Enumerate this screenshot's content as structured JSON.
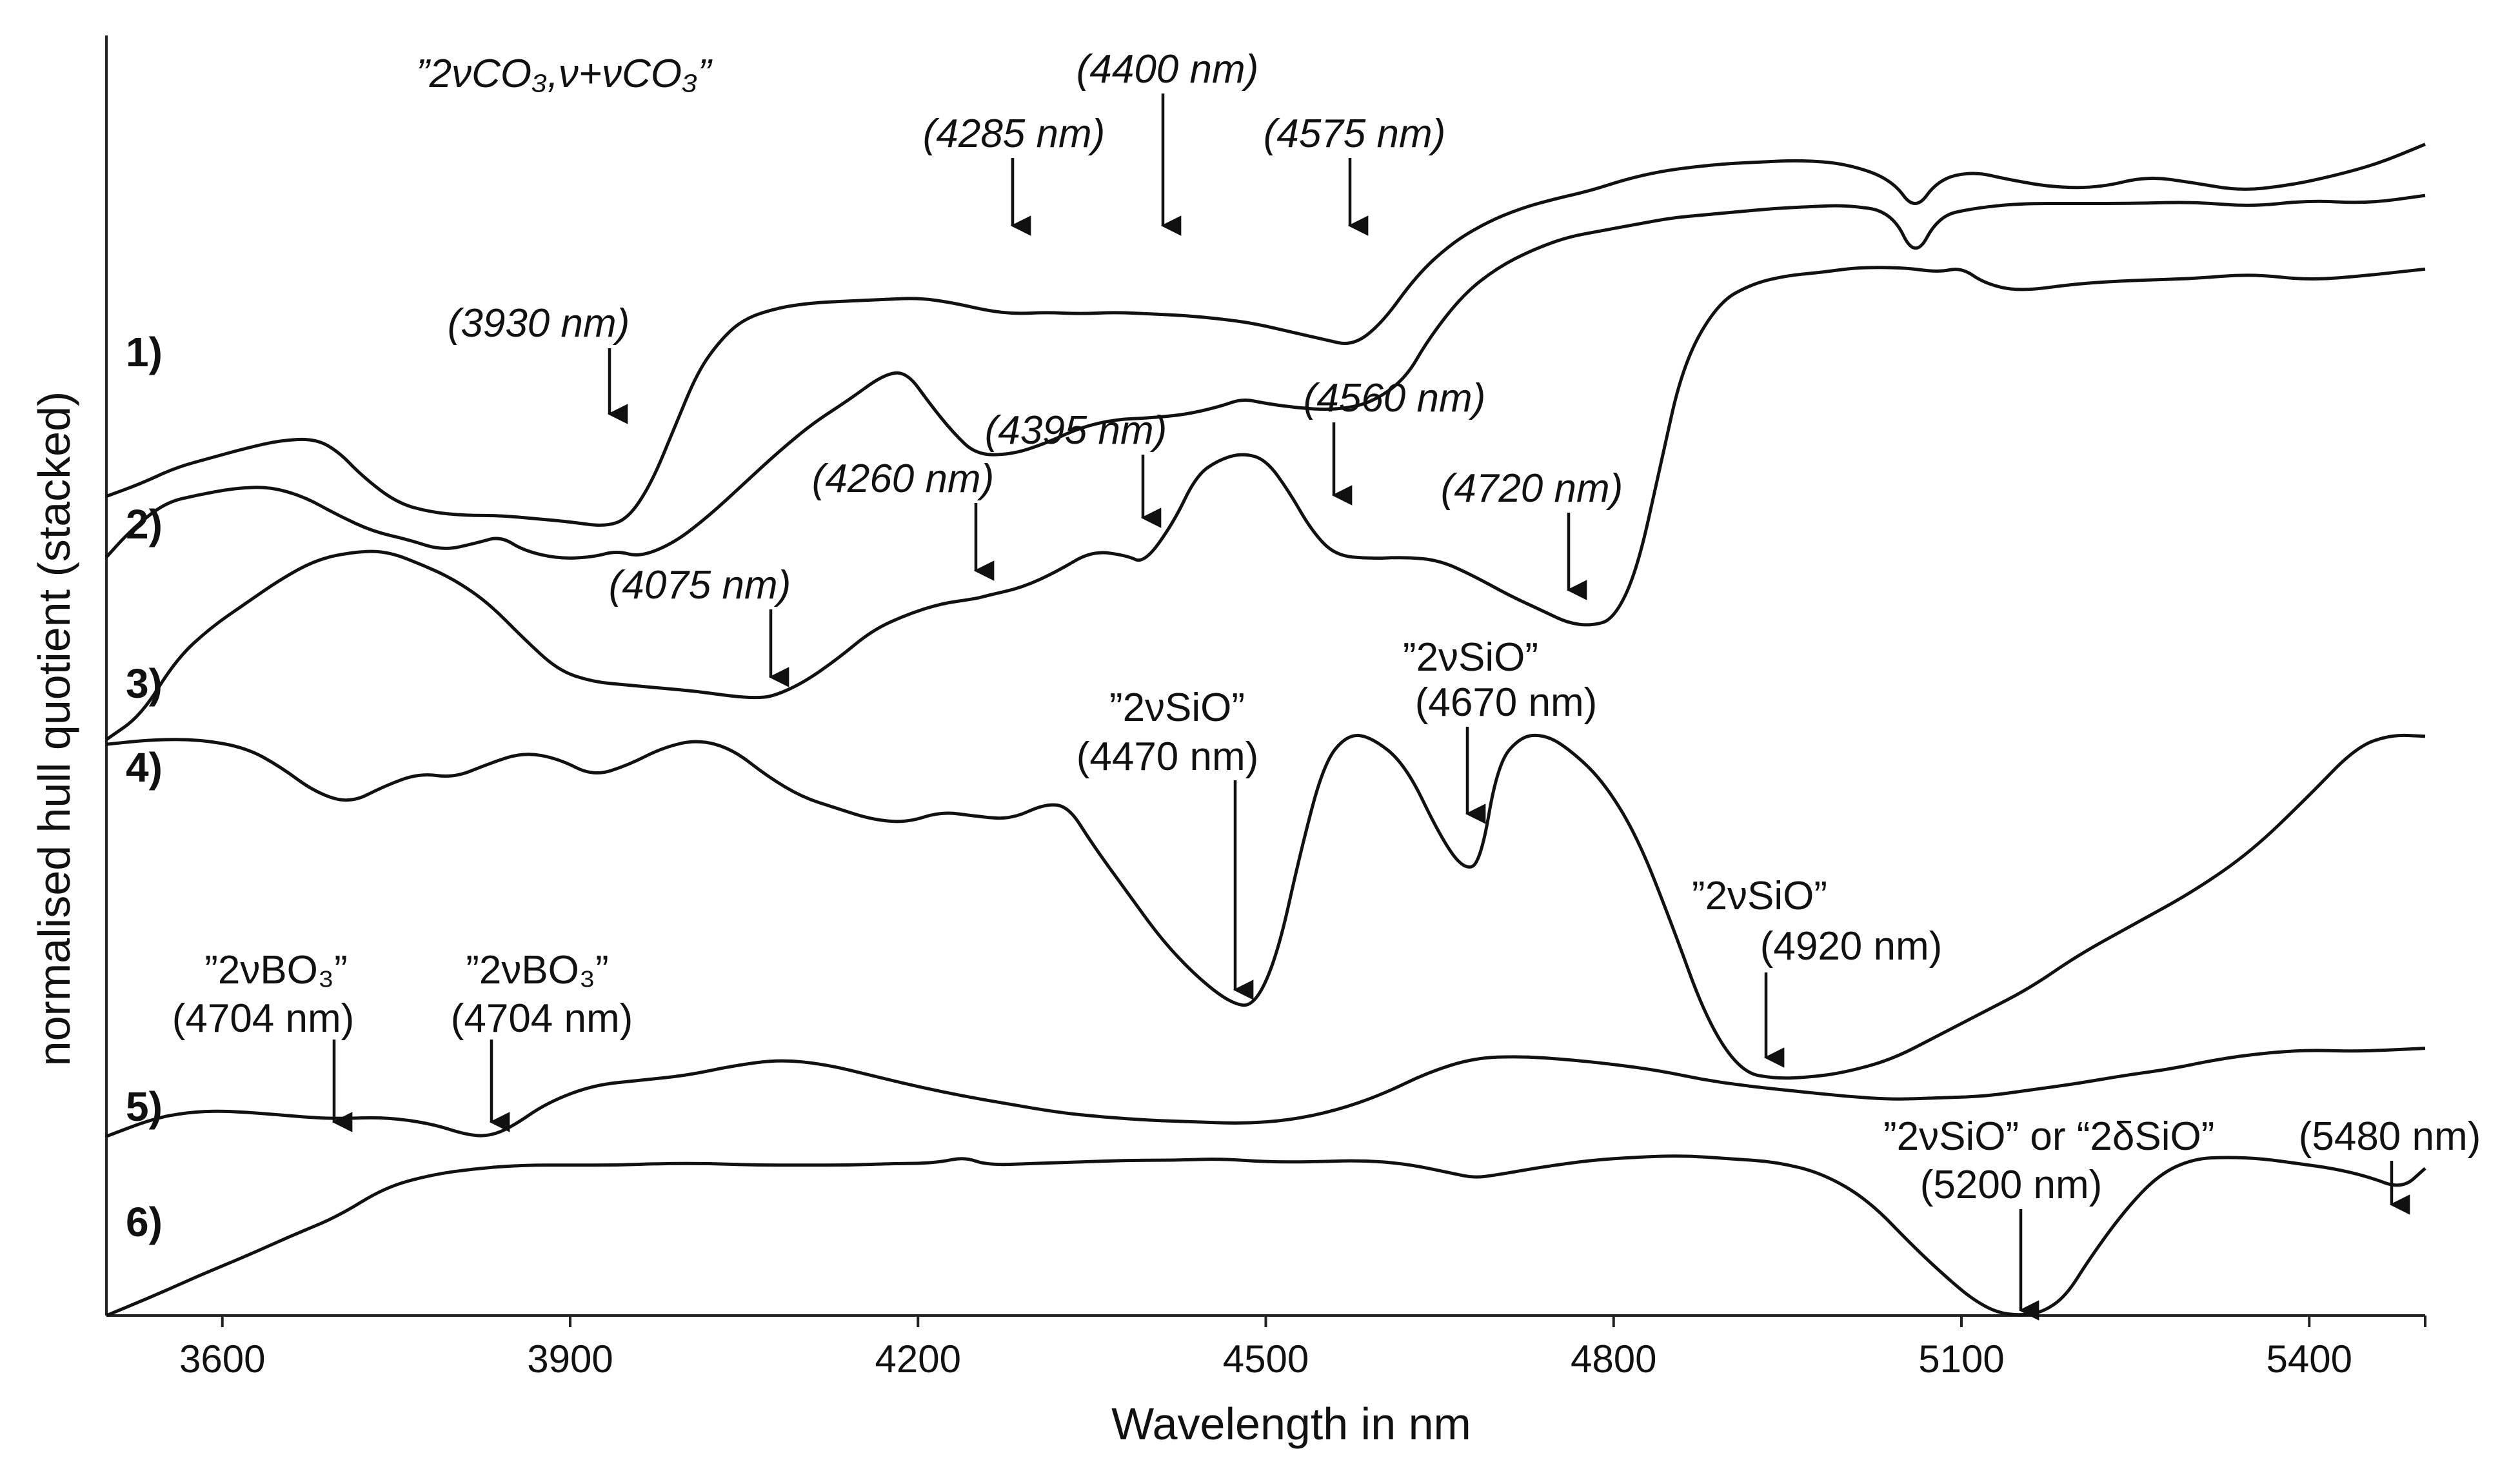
{
  "chart_data": {
    "type": "line",
    "title": "",
    "xlabel": "Wavelength in nm",
    "ylabel": "normalised hull quotient  (stacked)",
    "xlim": [
      3500,
      5500
    ],
    "ylim": [
      0,
      8
    ],
    "xticks": [
      3600,
      3900,
      4200,
      4500,
      4800,
      5100,
      5400
    ],
    "grid": false,
    "legend": "none",
    "series": [
      {
        "name": "1)",
        "x": [
          3500,
          3530,
          3560,
          3590,
          3620,
          3650,
          3680,
          3700,
          3720,
          3750,
          3780,
          3810,
          3840,
          3870,
          3900,
          3930,
          3950,
          3970,
          3990,
          4010,
          4030,
          4050,
          4080,
          4110,
          4140,
          4170,
          4200,
          4230,
          4260,
          4285,
          4310,
          4340,
          4370,
          4400,
          4430,
          4460,
          4490,
          4520,
          4550,
          4575,
          4600,
          4630,
          4660,
          4690,
          4720,
          4750,
          4780,
          4810,
          4840,
          4870,
          4900,
          4930,
          4960,
          5000,
          5040,
          5060,
          5080,
          5110,
          5140,
          5180,
          5220,
          5260,
          5300,
          5340,
          5380,
          5420,
          5460,
          5500
        ],
        "values": [
          5.12,
          5.2,
          5.3,
          5.36,
          5.42,
          5.47,
          5.48,
          5.4,
          5.25,
          5.08,
          5.02,
          5.0,
          5.0,
          4.98,
          4.96,
          4.93,
          4.98,
          5.2,
          5.55,
          5.9,
          6.1,
          6.23,
          6.3,
          6.33,
          6.34,
          6.35,
          6.36,
          6.33,
          6.28,
          6.26,
          6.27,
          6.26,
          6.27,
          6.26,
          6.25,
          6.23,
          6.2,
          6.15,
          6.1,
          6.06,
          6.2,
          6.5,
          6.7,
          6.83,
          6.92,
          6.98,
          7.03,
          7.1,
          7.15,
          7.18,
          7.2,
          7.21,
          7.22,
          7.2,
          7.1,
          6.9,
          7.1,
          7.15,
          7.1,
          7.05,
          7.05,
          7.12,
          7.08,
          7.03,
          7.06,
          7.12,
          7.2,
          7.32
        ]
      },
      {
        "name": "2)",
        "x": [
          3500,
          3520,
          3550,
          3580,
          3610,
          3640,
          3670,
          3700,
          3730,
          3760,
          3790,
          3820,
          3840,
          3860,
          3890,
          3920,
          3940,
          3960,
          3990,
          4020,
          4050,
          4080,
          4110,
          4140,
          4170,
          4190,
          4210,
          4230,
          4250,
          4280,
          4310,
          4340,
          4370,
          4400,
          4430,
          4460,
          4480,
          4500,
          4530,
          4560,
          4590,
          4620,
          4640,
          4670,
          4700,
          4730,
          4760,
          4790,
          4820,
          4850,
          4880,
          4910,
          4940,
          4970,
          5000,
          5040,
          5060,
          5080,
          5110,
          5150,
          5200,
          5250,
          5300,
          5350,
          5400,
          5450,
          5500
        ],
        "values": [
          4.74,
          4.9,
          5.08,
          5.13,
          5.17,
          5.18,
          5.12,
          5.0,
          4.9,
          4.85,
          4.78,
          4.83,
          4.87,
          4.78,
          4.73,
          4.74,
          4.78,
          4.74,
          4.83,
          5.0,
          5.2,
          5.4,
          5.58,
          5.72,
          5.88,
          5.9,
          5.7,
          5.52,
          5.38,
          5.38,
          5.45,
          5.55,
          5.6,
          5.61,
          5.63,
          5.68,
          5.73,
          5.7,
          5.67,
          5.66,
          5.7,
          5.85,
          6.1,
          6.38,
          6.55,
          6.66,
          6.74,
          6.78,
          6.82,
          6.86,
          6.88,
          6.9,
          6.92,
          6.93,
          6.94,
          6.9,
          6.6,
          6.87,
          6.92,
          6.95,
          6.95,
          6.95,
          6.96,
          6.93,
          6.97,
          6.95,
          7.0
        ]
      },
      {
        "name": "3)",
        "x": [
          3500,
          3530,
          3560,
          3590,
          3620,
          3650,
          3680,
          3710,
          3740,
          3770,
          3800,
          3830,
          3860,
          3890,
          3920,
          3950,
          3980,
          4010,
          4040,
          4060,
          4075,
          4100,
          4130,
          4160,
          4190,
          4220,
          4250,
          4260,
          4290,
          4320,
          4350,
          4380,
          4395,
          4420,
          4440,
          4460,
          4480,
          4500,
          4520,
          4540,
          4560,
          4590,
          4620,
          4650,
          4680,
          4710,
          4740,
          4760,
          4780,
          4800,
          4820,
          4840,
          4860,
          4890,
          4920,
          4950,
          4980,
          5010,
          5050,
          5080,
          5100,
          5120,
          5150,
          5200,
          5250,
          5300,
          5350,
          5400,
          5450,
          5500
        ],
        "values": [
          3.6,
          3.75,
          4.1,
          4.3,
          4.45,
          4.6,
          4.72,
          4.77,
          4.78,
          4.7,
          4.6,
          4.45,
          4.23,
          4.03,
          3.96,
          3.94,
          3.92,
          3.9,
          3.87,
          3.86,
          3.87,
          3.95,
          4.1,
          4.28,
          4.38,
          4.45,
          4.48,
          4.5,
          4.55,
          4.65,
          4.78,
          4.75,
          4.7,
          4.95,
          5.25,
          5.35,
          5.39,
          5.35,
          5.15,
          4.9,
          4.75,
          4.73,
          4.74,
          4.72,
          4.62,
          4.5,
          4.4,
          4.33,
          4.31,
          4.35,
          4.65,
          5.3,
          5.95,
          6.33,
          6.45,
          6.5,
          6.52,
          6.55,
          6.55,
          6.52,
          6.55,
          6.45,
          6.4,
          6.45,
          6.47,
          6.48,
          6.51,
          6.47,
          6.5,
          6.54
        ]
      },
      {
        "name": "4)",
        "x": [
          3500,
          3540,
          3580,
          3620,
          3650,
          3680,
          3710,
          3740,
          3770,
          3800,
          3830,
          3860,
          3890,
          3920,
          3950,
          3980,
          4010,
          4040,
          4070,
          4100,
          4130,
          4160,
          4190,
          4220,
          4250,
          4280,
          4310,
          4330,
          4350,
          4380,
          4410,
          4440,
          4470,
          4490,
          4510,
          4530,
          4550,
          4570,
          4590,
          4620,
          4650,
          4670,
          4685,
          4700,
          4720,
          4740,
          4760,
          4790,
          4820,
          4850,
          4880,
          4910,
          4940,
          4970,
          5000,
          5040,
          5080,
          5120,
          5160,
          5200,
          5250,
          5300,
          5350,
          5400,
          5440,
          5470,
          5500
        ],
        "values": [
          3.57,
          3.6,
          3.6,
          3.55,
          3.43,
          3.27,
          3.2,
          3.31,
          3.39,
          3.36,
          3.45,
          3.52,
          3.48,
          3.37,
          3.44,
          3.55,
          3.6,
          3.54,
          3.37,
          3.24,
          3.17,
          3.1,
          3.08,
          3.15,
          3.12,
          3.1,
          3.2,
          3.18,
          2.95,
          2.65,
          2.35,
          2.12,
          1.95,
          1.93,
          2.25,
          2.9,
          3.45,
          3.63,
          3.62,
          3.45,
          3.0,
          2.79,
          2.82,
          3.45,
          3.62,
          3.63,
          3.55,
          3.35,
          3.0,
          2.45,
          1.85,
          1.52,
          1.48,
          1.49,
          1.52,
          1.6,
          1.75,
          1.9,
          2.05,
          2.25,
          2.45,
          2.65,
          2.9,
          3.25,
          3.55,
          3.63,
          3.62
        ]
      },
      {
        "name": "5)",
        "x": [
          3500,
          3540,
          3570,
          3600,
          3640,
          3670,
          3700,
          3740,
          3780,
          3810,
          3830,
          3850,
          3880,
          3920,
          3960,
          4000,
          4040,
          4080,
          4120,
          4160,
          4200,
          4240,
          4280,
          4320,
          4360,
          4400,
          4440,
          4480,
          4520,
          4560,
          4600,
          4640,
          4680,
          4720,
          4760,
          4800,
          4840,
          4880,
          4920,
          4960,
          5000,
          5040,
          5080,
          5120,
          5160,
          5200,
          5240,
          5280,
          5320,
          5360,
          5400,
          5440,
          5500
        ],
        "values": [
          1.12,
          1.23,
          1.27,
          1.28,
          1.26,
          1.24,
          1.23,
          1.24,
          1.2,
          1.13,
          1.12,
          1.18,
          1.33,
          1.44,
          1.47,
          1.5,
          1.56,
          1.6,
          1.57,
          1.5,
          1.43,
          1.37,
          1.32,
          1.27,
          1.24,
          1.22,
          1.21,
          1.2,
          1.22,
          1.28,
          1.38,
          1.52,
          1.61,
          1.62,
          1.6,
          1.57,
          1.53,
          1.47,
          1.43,
          1.4,
          1.37,
          1.35,
          1.36,
          1.37,
          1.41,
          1.45,
          1.5,
          1.54,
          1.6,
          1.64,
          1.66,
          1.65,
          1.67
        ]
      },
      {
        "name": "6)",
        "x": [
          3500,
          3540,
          3580,
          3620,
          3660,
          3700,
          3740,
          3780,
          3820,
          3860,
          3900,
          3940,
          3980,
          4020,
          4060,
          4100,
          4140,
          4180,
          4200,
          4220,
          4240,
          4260,
          4300,
          4340,
          4380,
          4420,
          4460,
          4500,
          4540,
          4580,
          4620,
          4660,
          4680,
          4700,
          4740,
          4780,
          4820,
          4860,
          4900,
          4940,
          4980,
          5020,
          5060,
          5090,
          5110,
          5130,
          5150,
          5170,
          5190,
          5210,
          5240,
          5270,
          5300,
          5330,
          5360,
          5390,
          5420,
          5450,
          5480,
          5500
        ],
        "values": [
          0.0,
          0.12,
          0.25,
          0.37,
          0.5,
          0.62,
          0.8,
          0.88,
          0.92,
          0.94,
          0.94,
          0.94,
          0.95,
          0.95,
          0.94,
          0.94,
          0.94,
          0.95,
          0.95,
          0.96,
          0.99,
          0.94,
          0.95,
          0.96,
          0.97,
          0.97,
          0.98,
          0.96,
          0.96,
          0.97,
          0.95,
          0.89,
          0.86,
          0.88,
          0.93,
          0.97,
          0.99,
          1.0,
          0.98,
          0.96,
          0.89,
          0.72,
          0.42,
          0.22,
          0.1,
          0.02,
          0.0,
          0.02,
          0.12,
          0.35,
          0.65,
          0.88,
          0.98,
          0.99,
          0.98,
          0.95,
          0.92,
          0.87,
          0.79,
          0.92
        ]
      }
    ],
    "annotations": [
      {
        "text": "(3930 nm)",
        "x": 3930,
        "series": "1)"
      },
      {
        "text": "(4285 nm)",
        "x": 4285,
        "series": "1)"
      },
      {
        "text": "(4400 nm)",
        "x": 4400,
        "series": "1)"
      },
      {
        "text": "(4575 nm)",
        "x": 4575,
        "series": "1)"
      },
      {
        "text": "”2νCO₃,ν+νCO₃”",
        "x": 3900,
        "series": "1)"
      },
      {
        "text": "(4075 nm)",
        "x": 4075,
        "series": "3)"
      },
      {
        "text": "(4260 nm)",
        "x": 4260,
        "series": "3)"
      },
      {
        "text": "(4395 nm)",
        "x": 4395,
        "series": "3)"
      },
      {
        "text": "(4560 nm)",
        "x": 4560,
        "series": "3)"
      },
      {
        "text": "(4720 nm)",
        "x": 4720,
        "series": "3)"
      },
      {
        "text": "”2νSiO” (4470 nm)",
        "x": 4470,
        "series": "4)"
      },
      {
        "text": "”2νSiO” (4670 nm)",
        "x": 4670,
        "series": "4)"
      },
      {
        "text": "”2νSiO” (4920 nm)",
        "x": 4920,
        "series": "4)"
      },
      {
        "text": "”2νBO₃” (4704 nm)",
        "x": 3700,
        "series": "5)"
      },
      {
        "text": "”2νBO₃” (4704 nm)",
        "x": 3830,
        "series": "5)"
      },
      {
        "text": "”2νSiO” or “2δSiO” (5200 nm)",
        "x": 5150,
        "series": "6)"
      },
      {
        "text": "(5480 nm)",
        "x": 5480,
        "series": "6)"
      }
    ]
  },
  "labels": {
    "co3_title": "”2νCO₃,ν+νCO₃”",
    "a_3930": "(3930 nm)",
    "a_4285": "(4285 nm)",
    "a_4400": "(4400 nm)",
    "a_4575": "(4575 nm)",
    "a_4075": "(4075 nm)",
    "a_4260": "(4260 nm)",
    "a_4395": "(4395 nm)",
    "a_4560": "(4560 nm)",
    "a_4720": "(4720 nm)",
    "sio_word": "”2νSiO”",
    "a_4470": "(4470 nm)",
    "a_4670": "(4670 nm)",
    "a_4920": "(4920 nm)",
    "bo3_word": "”2νBO₃”",
    "a_4704": "(4704 nm)",
    "sio_or": "”2νSiO” or “2δSiO”",
    "a_5200": "(5200 nm)",
    "a_5480": "(5480 nm)"
  }
}
